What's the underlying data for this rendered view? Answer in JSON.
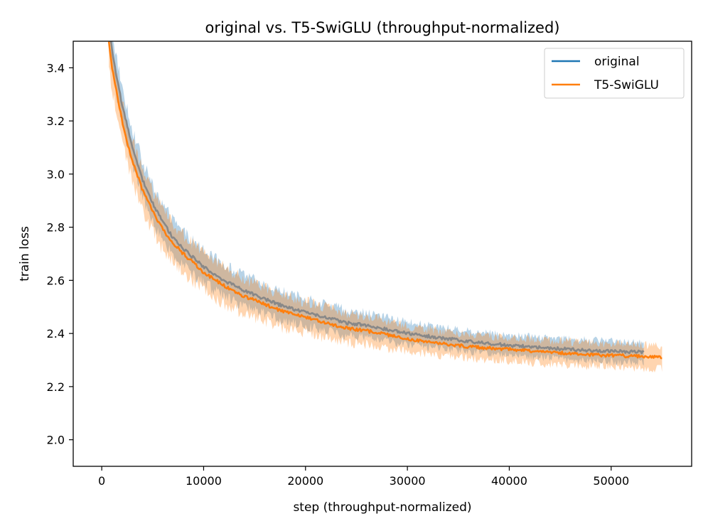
{
  "chart_data": {
    "type": "line",
    "title": "original vs. T5-SwiGLU (throughput-normalized)",
    "xlabel": "step (throughput-normalized)",
    "ylabel": "train loss",
    "xlim": [
      -2800,
      57900
    ],
    "ylim": [
      1.9,
      3.5
    ],
    "xticks": [
      0,
      10000,
      20000,
      30000,
      40000,
      50000
    ],
    "yticks": [
      2.0,
      2.2,
      2.4,
      2.6,
      2.8,
      3.0,
      3.2,
      3.4
    ],
    "legend_position": "top-right",
    "grid": false,
    "series": [
      {
        "name": "original",
        "color": "#1f77b4",
        "end_step": 53200,
        "band_halfwidth_min": 0.045,
        "band_halfwidth_max": 0.08,
        "x": [
          900,
          1200,
          1500,
          2000,
          2500,
          3000,
          4000,
          5000,
          6000,
          7000,
          8000,
          10000,
          12000,
          14000,
          16000,
          18000,
          20000,
          22000,
          24000,
          26000,
          28000,
          30000,
          33000,
          36000,
          40000,
          44000,
          48000,
          53000
        ],
        "y": [
          3.5,
          3.42,
          3.36,
          3.26,
          3.18,
          3.1,
          2.98,
          2.89,
          2.82,
          2.76,
          2.72,
          2.65,
          2.6,
          2.56,
          2.53,
          2.5,
          2.48,
          2.46,
          2.44,
          2.43,
          2.415,
          2.4,
          2.385,
          2.37,
          2.355,
          2.345,
          2.335,
          2.33
        ]
      },
      {
        "name": "T5-SwiGLU",
        "color": "#ff7f0e",
        "end_step": 55000,
        "band_halfwidth_min": 0.05,
        "band_halfwidth_max": 0.09,
        "x": [
          700,
          1000,
          1500,
          2000,
          2500,
          3000,
          4000,
          5000,
          6000,
          7000,
          8000,
          10000,
          12000,
          14000,
          16000,
          18000,
          20000,
          22000,
          24000,
          26000,
          28000,
          30000,
          33000,
          36000,
          40000,
          44000,
          48000,
          52000,
          55000
        ],
        "y": [
          3.5,
          3.4,
          3.3,
          3.2,
          3.12,
          3.05,
          2.94,
          2.86,
          2.79,
          2.74,
          2.7,
          2.63,
          2.58,
          2.54,
          2.51,
          2.48,
          2.46,
          2.44,
          2.42,
          2.41,
          2.395,
          2.38,
          2.365,
          2.35,
          2.34,
          2.33,
          2.32,
          2.315,
          2.31
        ]
      }
    ]
  }
}
